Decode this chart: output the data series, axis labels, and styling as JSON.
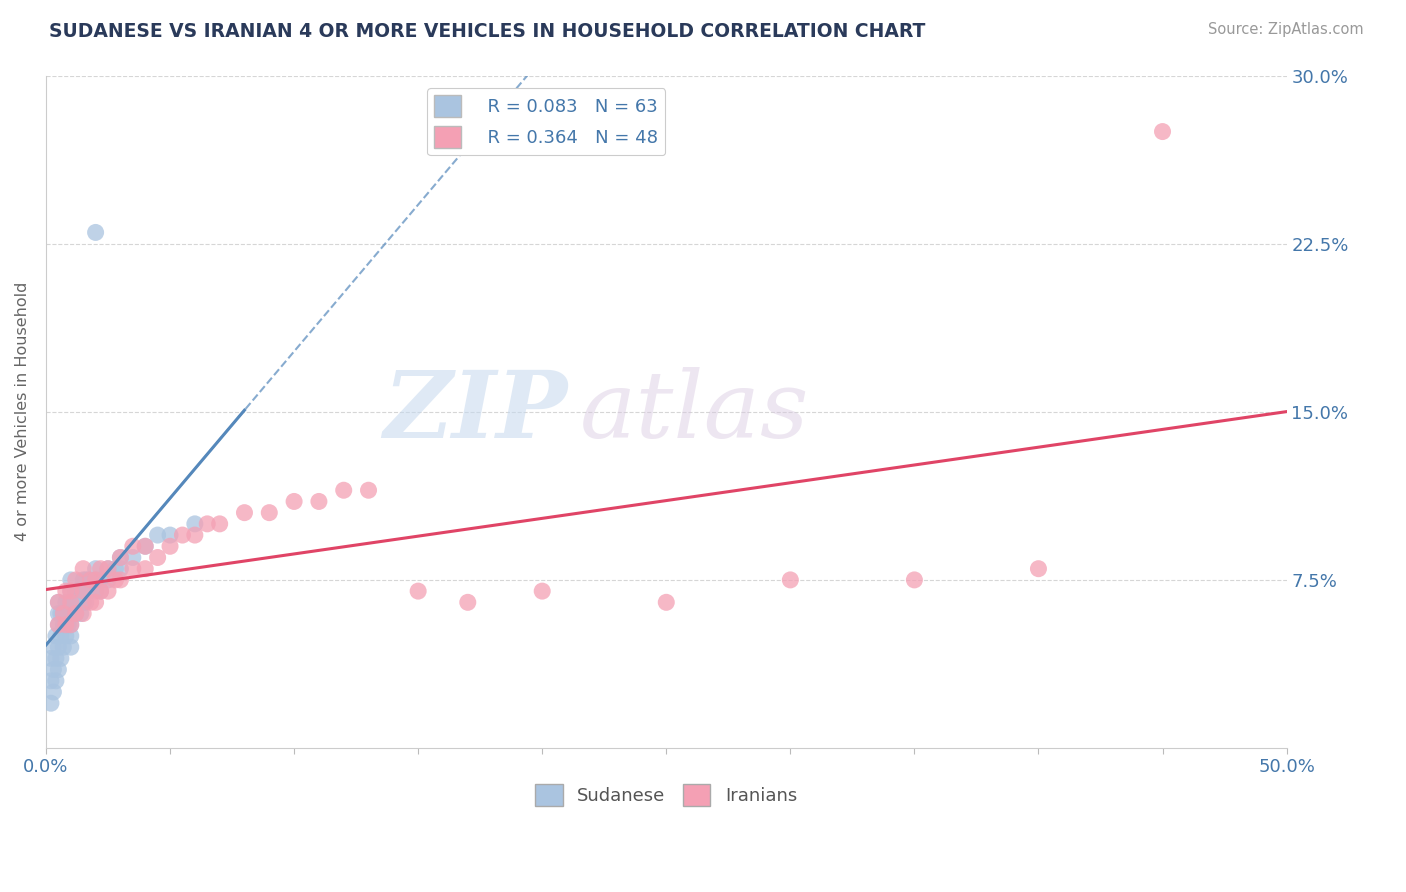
{
  "title": "SUDANESE VS IRANIAN 4 OR MORE VEHICLES IN HOUSEHOLD CORRELATION CHART",
  "source_text": "Source: ZipAtlas.com",
  "ylabel": "4 or more Vehicles in Household",
  "xlim": [
    0.0,
    0.5
  ],
  "ylim": [
    0.0,
    0.3
  ],
  "sudanese_color": "#aac4e0",
  "iranian_color": "#f4a0b4",
  "sudanese_line_color": "#5588bb",
  "iranian_line_color": "#e04466",
  "legend_R_sudanese": "R = 0.083",
  "legend_N_sudanese": "N = 63",
  "legend_R_iranian": "R = 0.364",
  "legend_N_iranian": "N = 48",
  "watermark_zip": "ZIP",
  "watermark_atlas": "atlas",
  "background_color": "#ffffff",
  "grid_color": "#cccccc",
  "sudanese_x": [
    0.002,
    0.002,
    0.002,
    0.003,
    0.003,
    0.003,
    0.004,
    0.004,
    0.004,
    0.005,
    0.005,
    0.005,
    0.005,
    0.005,
    0.006,
    0.006,
    0.006,
    0.007,
    0.007,
    0.007,
    0.008,
    0.008,
    0.008,
    0.009,
    0.009,
    0.009,
    0.01,
    0.01,
    0.01,
    0.01,
    0.01,
    0.01,
    0.01,
    0.012,
    0.012,
    0.012,
    0.013,
    0.013,
    0.014,
    0.014,
    0.015,
    0.015,
    0.015,
    0.016,
    0.016,
    0.017,
    0.017,
    0.02,
    0.02,
    0.02,
    0.022,
    0.022,
    0.025,
    0.025,
    0.028,
    0.03,
    0.03,
    0.035,
    0.04,
    0.045,
    0.05,
    0.06,
    0.02
  ],
  "sudanese_y": [
    0.02,
    0.03,
    0.04,
    0.025,
    0.035,
    0.045,
    0.03,
    0.04,
    0.05,
    0.035,
    0.045,
    0.055,
    0.06,
    0.065,
    0.04,
    0.05,
    0.06,
    0.045,
    0.055,
    0.06,
    0.05,
    0.06,
    0.065,
    0.055,
    0.06,
    0.065,
    0.055,
    0.06,
    0.065,
    0.07,
    0.075,
    0.05,
    0.045,
    0.06,
    0.065,
    0.07,
    0.065,
    0.07,
    0.06,
    0.07,
    0.065,
    0.07,
    0.075,
    0.065,
    0.075,
    0.07,
    0.075,
    0.07,
    0.075,
    0.08,
    0.07,
    0.075,
    0.075,
    0.08,
    0.08,
    0.08,
    0.085,
    0.085,
    0.09,
    0.095,
    0.095,
    0.1,
    0.23
  ],
  "iranian_x": [
    0.005,
    0.005,
    0.007,
    0.008,
    0.008,
    0.01,
    0.01,
    0.01,
    0.012,
    0.012,
    0.015,
    0.015,
    0.015,
    0.018,
    0.018,
    0.02,
    0.02,
    0.022,
    0.022,
    0.025,
    0.025,
    0.028,
    0.03,
    0.03,
    0.035,
    0.035,
    0.04,
    0.04,
    0.045,
    0.05,
    0.055,
    0.06,
    0.065,
    0.07,
    0.08,
    0.09,
    0.1,
    0.11,
    0.12,
    0.13,
    0.15,
    0.17,
    0.2,
    0.25,
    0.3,
    0.35,
    0.4,
    0.45
  ],
  "iranian_y": [
    0.055,
    0.065,
    0.06,
    0.055,
    0.07,
    0.055,
    0.065,
    0.07,
    0.06,
    0.075,
    0.06,
    0.07,
    0.08,
    0.065,
    0.075,
    0.065,
    0.075,
    0.07,
    0.08,
    0.07,
    0.08,
    0.075,
    0.075,
    0.085,
    0.08,
    0.09,
    0.08,
    0.09,
    0.085,
    0.09,
    0.095,
    0.095,
    0.1,
    0.1,
    0.105,
    0.105,
    0.11,
    0.11,
    0.115,
    0.115,
    0.07,
    0.065,
    0.07,
    0.065,
    0.075,
    0.075,
    0.08,
    0.275
  ]
}
